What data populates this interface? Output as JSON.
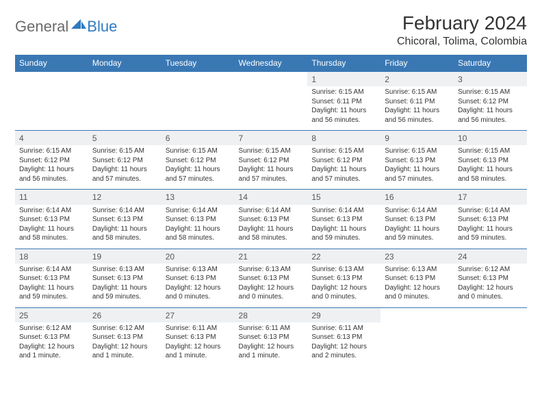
{
  "header": {
    "logo_general": "General",
    "logo_blue": "Blue",
    "month_title": "February 2024",
    "location": "Chicoral, Tolima, Colombia"
  },
  "colors": {
    "header_bg": "#3a78b4",
    "header_text": "#ffffff",
    "daynum_bg": "#eef0f2",
    "body_text": "#333333",
    "rule": "#3a78b4"
  },
  "weekdays": [
    "Sunday",
    "Monday",
    "Tuesday",
    "Wednesday",
    "Thursday",
    "Friday",
    "Saturday"
  ],
  "layout": {
    "first_day_col": 4,
    "num_days": 29
  },
  "days": [
    {
      "n": 1,
      "sunrise": "Sunrise: 6:15 AM",
      "sunset": "Sunset: 6:11 PM",
      "daylight1": "Daylight: 11 hours",
      "daylight2": "and 56 minutes."
    },
    {
      "n": 2,
      "sunrise": "Sunrise: 6:15 AM",
      "sunset": "Sunset: 6:11 PM",
      "daylight1": "Daylight: 11 hours",
      "daylight2": "and 56 minutes."
    },
    {
      "n": 3,
      "sunrise": "Sunrise: 6:15 AM",
      "sunset": "Sunset: 6:12 PM",
      "daylight1": "Daylight: 11 hours",
      "daylight2": "and 56 minutes."
    },
    {
      "n": 4,
      "sunrise": "Sunrise: 6:15 AM",
      "sunset": "Sunset: 6:12 PM",
      "daylight1": "Daylight: 11 hours",
      "daylight2": "and 56 minutes."
    },
    {
      "n": 5,
      "sunrise": "Sunrise: 6:15 AM",
      "sunset": "Sunset: 6:12 PM",
      "daylight1": "Daylight: 11 hours",
      "daylight2": "and 57 minutes."
    },
    {
      "n": 6,
      "sunrise": "Sunrise: 6:15 AM",
      "sunset": "Sunset: 6:12 PM",
      "daylight1": "Daylight: 11 hours",
      "daylight2": "and 57 minutes."
    },
    {
      "n": 7,
      "sunrise": "Sunrise: 6:15 AM",
      "sunset": "Sunset: 6:12 PM",
      "daylight1": "Daylight: 11 hours",
      "daylight2": "and 57 minutes."
    },
    {
      "n": 8,
      "sunrise": "Sunrise: 6:15 AM",
      "sunset": "Sunset: 6:12 PM",
      "daylight1": "Daylight: 11 hours",
      "daylight2": "and 57 minutes."
    },
    {
      "n": 9,
      "sunrise": "Sunrise: 6:15 AM",
      "sunset": "Sunset: 6:13 PM",
      "daylight1": "Daylight: 11 hours",
      "daylight2": "and 57 minutes."
    },
    {
      "n": 10,
      "sunrise": "Sunrise: 6:15 AM",
      "sunset": "Sunset: 6:13 PM",
      "daylight1": "Daylight: 11 hours",
      "daylight2": "and 58 minutes."
    },
    {
      "n": 11,
      "sunrise": "Sunrise: 6:14 AM",
      "sunset": "Sunset: 6:13 PM",
      "daylight1": "Daylight: 11 hours",
      "daylight2": "and 58 minutes."
    },
    {
      "n": 12,
      "sunrise": "Sunrise: 6:14 AM",
      "sunset": "Sunset: 6:13 PM",
      "daylight1": "Daylight: 11 hours",
      "daylight2": "and 58 minutes."
    },
    {
      "n": 13,
      "sunrise": "Sunrise: 6:14 AM",
      "sunset": "Sunset: 6:13 PM",
      "daylight1": "Daylight: 11 hours",
      "daylight2": "and 58 minutes."
    },
    {
      "n": 14,
      "sunrise": "Sunrise: 6:14 AM",
      "sunset": "Sunset: 6:13 PM",
      "daylight1": "Daylight: 11 hours",
      "daylight2": "and 58 minutes."
    },
    {
      "n": 15,
      "sunrise": "Sunrise: 6:14 AM",
      "sunset": "Sunset: 6:13 PM",
      "daylight1": "Daylight: 11 hours",
      "daylight2": "and 59 minutes."
    },
    {
      "n": 16,
      "sunrise": "Sunrise: 6:14 AM",
      "sunset": "Sunset: 6:13 PM",
      "daylight1": "Daylight: 11 hours",
      "daylight2": "and 59 minutes."
    },
    {
      "n": 17,
      "sunrise": "Sunrise: 6:14 AM",
      "sunset": "Sunset: 6:13 PM",
      "daylight1": "Daylight: 11 hours",
      "daylight2": "and 59 minutes."
    },
    {
      "n": 18,
      "sunrise": "Sunrise: 6:14 AM",
      "sunset": "Sunset: 6:13 PM",
      "daylight1": "Daylight: 11 hours",
      "daylight2": "and 59 minutes."
    },
    {
      "n": 19,
      "sunrise": "Sunrise: 6:13 AM",
      "sunset": "Sunset: 6:13 PM",
      "daylight1": "Daylight: 11 hours",
      "daylight2": "and 59 minutes."
    },
    {
      "n": 20,
      "sunrise": "Sunrise: 6:13 AM",
      "sunset": "Sunset: 6:13 PM",
      "daylight1": "Daylight: 12 hours",
      "daylight2": "and 0 minutes."
    },
    {
      "n": 21,
      "sunrise": "Sunrise: 6:13 AM",
      "sunset": "Sunset: 6:13 PM",
      "daylight1": "Daylight: 12 hours",
      "daylight2": "and 0 minutes."
    },
    {
      "n": 22,
      "sunrise": "Sunrise: 6:13 AM",
      "sunset": "Sunset: 6:13 PM",
      "daylight1": "Daylight: 12 hours",
      "daylight2": "and 0 minutes."
    },
    {
      "n": 23,
      "sunrise": "Sunrise: 6:13 AM",
      "sunset": "Sunset: 6:13 PM",
      "daylight1": "Daylight: 12 hours",
      "daylight2": "and 0 minutes."
    },
    {
      "n": 24,
      "sunrise": "Sunrise: 6:12 AM",
      "sunset": "Sunset: 6:13 PM",
      "daylight1": "Daylight: 12 hours",
      "daylight2": "and 0 minutes."
    },
    {
      "n": 25,
      "sunrise": "Sunrise: 6:12 AM",
      "sunset": "Sunset: 6:13 PM",
      "daylight1": "Daylight: 12 hours",
      "daylight2": "and 1 minute."
    },
    {
      "n": 26,
      "sunrise": "Sunrise: 6:12 AM",
      "sunset": "Sunset: 6:13 PM",
      "daylight1": "Daylight: 12 hours",
      "daylight2": "and 1 minute."
    },
    {
      "n": 27,
      "sunrise": "Sunrise: 6:11 AM",
      "sunset": "Sunset: 6:13 PM",
      "daylight1": "Daylight: 12 hours",
      "daylight2": "and 1 minute."
    },
    {
      "n": 28,
      "sunrise": "Sunrise: 6:11 AM",
      "sunset": "Sunset: 6:13 PM",
      "daylight1": "Daylight: 12 hours",
      "daylight2": "and 1 minute."
    },
    {
      "n": 29,
      "sunrise": "Sunrise: 6:11 AM",
      "sunset": "Sunset: 6:13 PM",
      "daylight1": "Daylight: 12 hours",
      "daylight2": "and 2 minutes."
    }
  ]
}
